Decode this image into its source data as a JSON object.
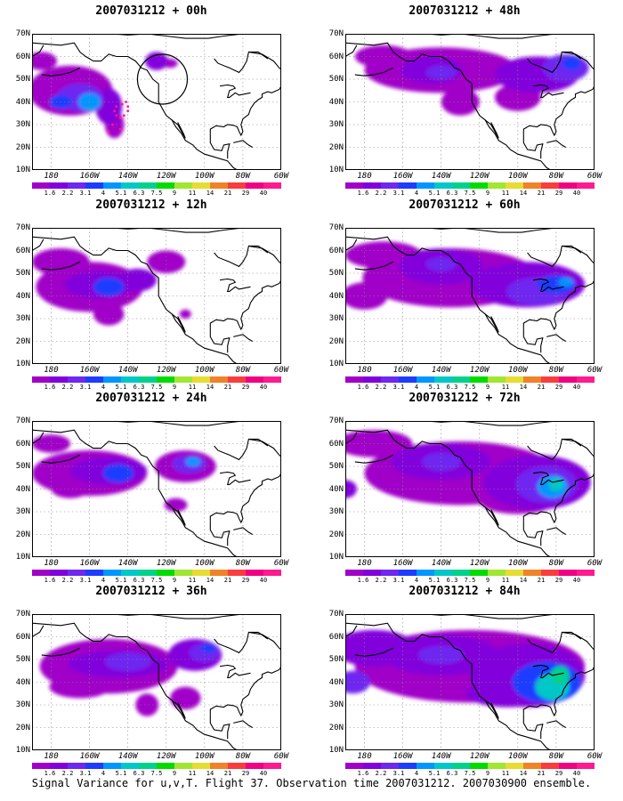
{
  "panels": [
    {
      "title_date": "2007031212",
      "title_sep": " + ",
      "title_lead": "00h",
      "side": "left",
      "row": 0,
      "intensity": 0.35,
      "observation_marks": true
    },
    {
      "title_date": "2007031212",
      "title_sep": " + ",
      "title_lead": "12h",
      "side": "left",
      "row": 1,
      "intensity": 0.45,
      "observation_marks": false
    },
    {
      "title_date": "2007031212",
      "title_sep": " + ",
      "title_lead": "24h",
      "side": "left",
      "row": 2,
      "intensity": 0.55,
      "observation_marks": false
    },
    {
      "title_date": "2007031212",
      "title_sep": " + ",
      "title_lead": "36h",
      "side": "left",
      "row": 3,
      "intensity": 0.6,
      "observation_marks": false
    },
    {
      "title_date": "2007031212",
      "title_sep": " + ",
      "title_lead": "48h",
      "side": "right",
      "row": 0,
      "intensity": 0.65,
      "observation_marks": false
    },
    {
      "title_date": "2007031212",
      "title_sep": " + ",
      "title_lead": "60h",
      "side": "right",
      "row": 1,
      "intensity": 0.7,
      "observation_marks": false
    },
    {
      "title_date": "2007031212",
      "title_sep": " + ",
      "title_lead": "72h",
      "side": "right",
      "row": 2,
      "intensity": 0.8,
      "observation_marks": false
    },
    {
      "title_date": "2007031212",
      "title_sep": " + ",
      "title_lead": "84h",
      "side": "right",
      "row": 3,
      "intensity": 0.9,
      "observation_marks": false
    }
  ],
  "axes": {
    "lat_labels": [
      "70N",
      "60N",
      "50N",
      "40N",
      "30N",
      "20N",
      "10N"
    ],
    "lon_labels": [
      "180",
      "160W",
      "140W",
      "120W",
      "100W",
      "80W",
      "60W"
    ]
  },
  "colorbar": {
    "labels": [
      "1.6",
      "2.2",
      "3.1",
      "4",
      "5.1",
      "6.3",
      "7.5",
      "9",
      "11",
      "14",
      "21",
      "29",
      "40"
    ],
    "colors": [
      "#a000c8",
      "#8200dc",
      "#6e28f0",
      "#1e3cff",
      "#0096ff",
      "#00c8c8",
      "#00d28c",
      "#00dc00",
      "#a0e632",
      "#e6dc32",
      "#f08228",
      "#fa3c3c",
      "#f00082",
      "#ff1a90"
    ]
  },
  "caption": "Signal Variance for u,v,T. Flight 37. Observation time 2007031212. 2007030900 ensemble."
}
